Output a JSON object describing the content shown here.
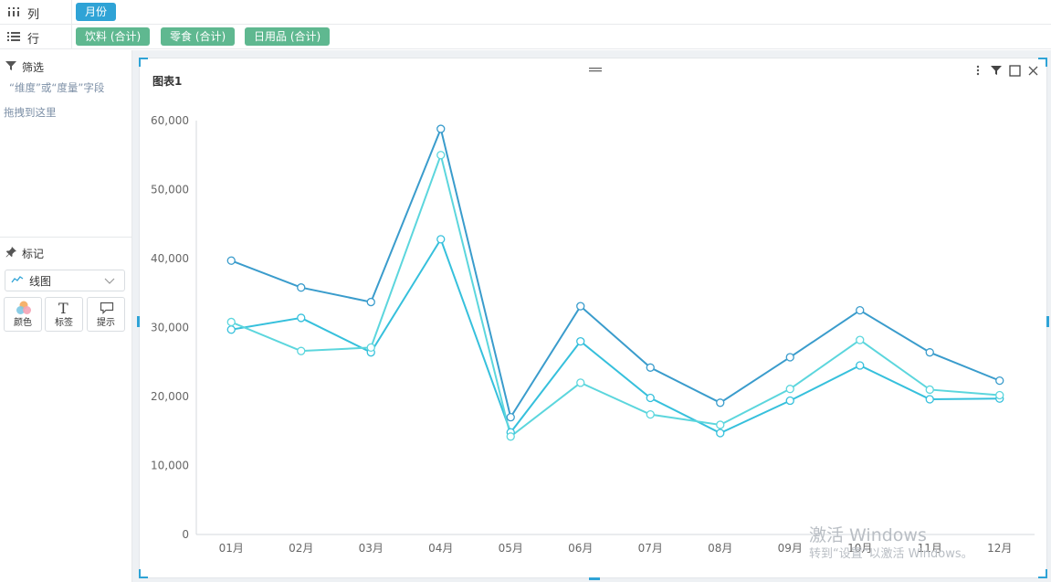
{
  "shelves": {
    "columns": {
      "label": "列",
      "pills": [
        "月份"
      ]
    },
    "rows": {
      "label": "行",
      "pills": [
        "饮料 (合计)",
        "零食 (合计)",
        "日用品 (合计)"
      ]
    }
  },
  "sidebar": {
    "filter": {
      "title": "筛选",
      "hint_line1": "“维度”或“度量”字段",
      "hint_line2": "拖拽到这里"
    },
    "marks": {
      "title": "标记",
      "chart_type": "线图",
      "buttons": [
        "颜色",
        "标签",
        "提示"
      ]
    }
  },
  "card": {
    "title": "图表1"
  },
  "watermark": {
    "line1": "激活 Windows",
    "line2": "转到“设置”以激活 Windows。"
  },
  "colors": {
    "series_dark": "#3a9ccc",
    "series_mid": "#36c0dc",
    "series_light": "#5cd6dd",
    "pill_blue": "#2fa3d6",
    "pill_green": "#5fb890"
  },
  "chart_data": {
    "type": "line",
    "title": "",
    "xlabel": "",
    "ylabel": "",
    "categories": [
      "01月",
      "02月",
      "03月",
      "04月",
      "05月",
      "06月",
      "07月",
      "08月",
      "09月",
      "10月",
      "11月",
      "12月"
    ],
    "ylim": [
      0,
      60000
    ],
    "yticks": [
      0,
      10000,
      20000,
      30000,
      40000,
      50000,
      60000
    ],
    "ytick_labels": [
      "0",
      "10,000",
      "20,000",
      "30,000",
      "40,000",
      "50,000",
      "60,000"
    ],
    "grid": false,
    "legend": "none",
    "series": [
      {
        "color": "#3a9ccc",
        "values": [
          39700,
          35800,
          33700,
          58800,
          17000,
          33100,
          24200,
          19100,
          25700,
          32500,
          26400,
          22300
        ]
      },
      {
        "color": "#36c0dc",
        "values": [
          29700,
          31400,
          26400,
          42800,
          14800,
          28000,
          19800,
          14700,
          19400,
          24500,
          19600,
          19700
        ]
      },
      {
        "color": "#5cd6dd",
        "values": [
          30800,
          26600,
          27100,
          55000,
          14200,
          22000,
          17400,
          15900,
          21100,
          28200,
          21000,
          20200
        ]
      }
    ]
  }
}
